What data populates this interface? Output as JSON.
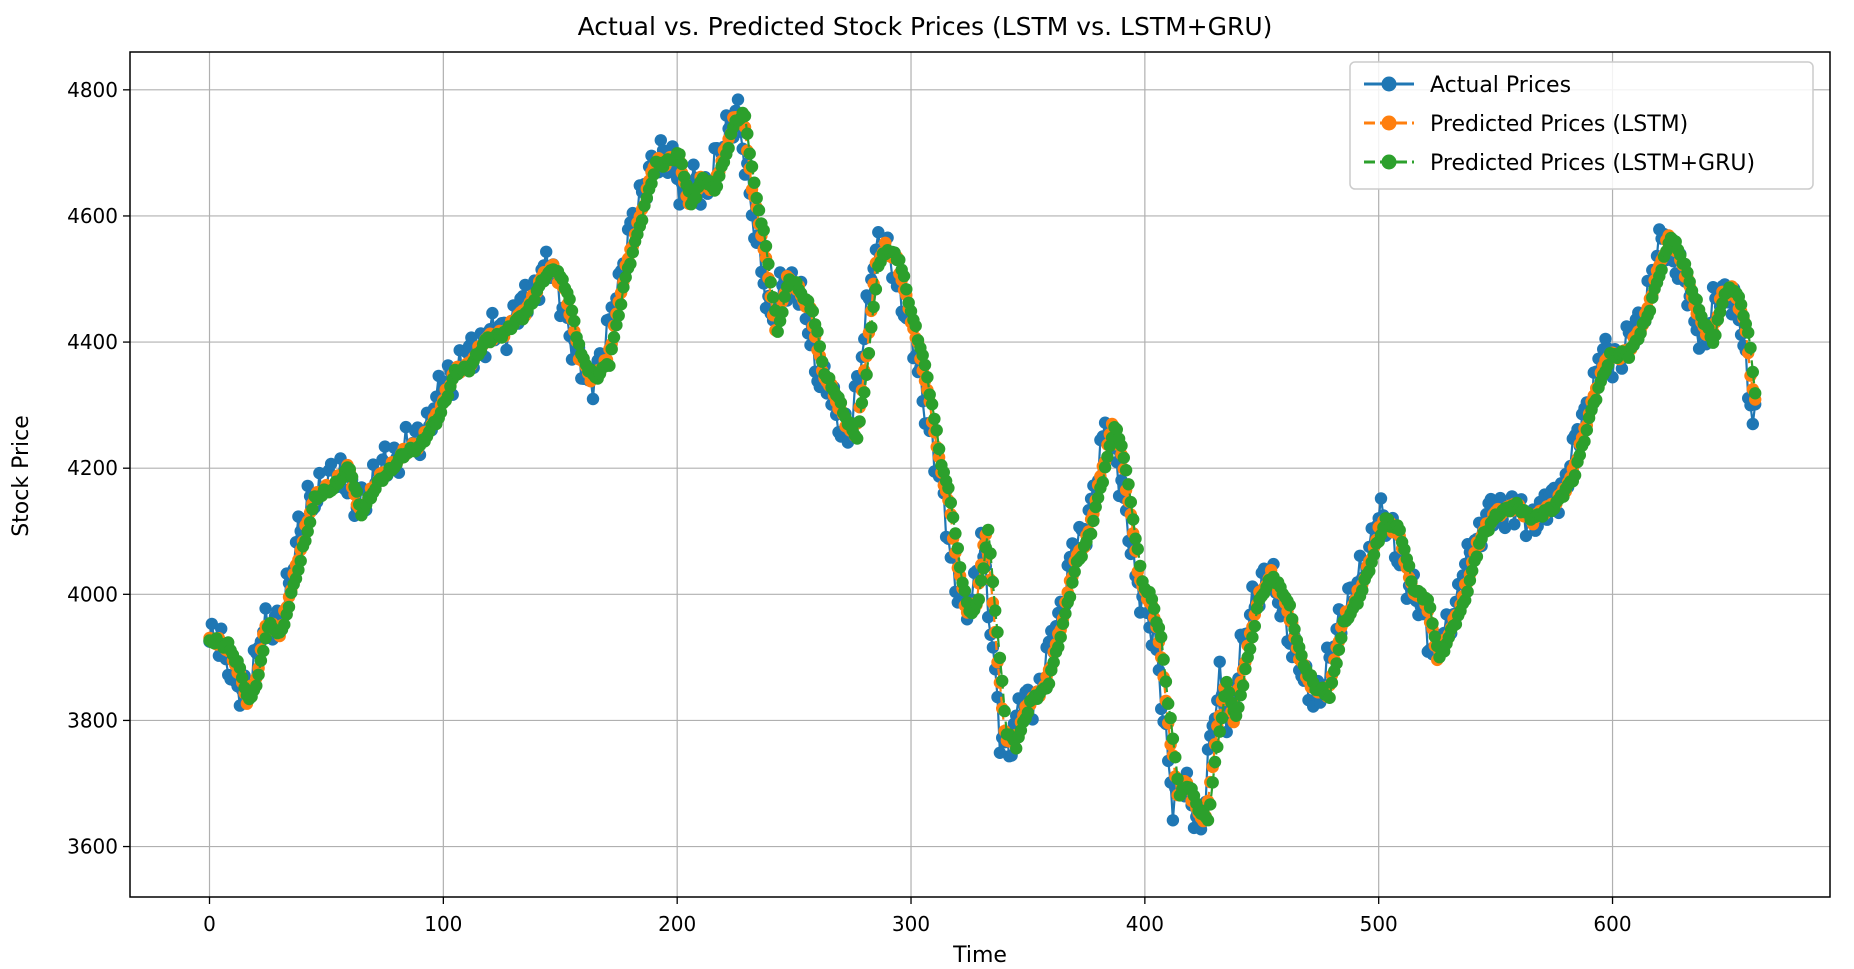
{
  "chart_data": {
    "type": "line",
    "title": "Actual vs. Predicted Stock Prices (LSTM vs. LSTM+GRU)",
    "xlabel": "Time",
    "ylabel": "Stock Price",
    "xlim": [
      -34,
      693
    ],
    "ylim": [
      3520,
      4860
    ],
    "xticks": [
      0,
      100,
      200,
      300,
      400,
      500,
      600
    ],
    "yticks": [
      3600,
      3800,
      4000,
      4200,
      4400,
      4600,
      4800
    ],
    "grid": true,
    "legend_position": "top-right",
    "anchor_x": [
      0,
      5,
      10,
      14,
      18,
      22,
      28,
      35,
      42,
      50,
      57,
      62,
      70,
      80,
      88,
      95,
      102,
      108,
      115,
      125,
      133,
      140,
      145,
      150,
      156,
      162,
      168,
      175,
      182,
      188,
      194,
      198,
      203,
      208,
      213,
      218,
      222,
      226,
      230,
      235,
      240,
      245,
      250,
      255,
      260,
      265,
      270,
      274,
      278,
      283,
      287,
      292,
      297,
      302,
      306,
      310,
      314,
      318,
      322,
      326,
      330,
      334,
      338,
      342,
      348,
      355,
      362,
      368,
      374,
      380,
      384,
      388,
      392,
      396,
      400,
      404,
      408,
      412,
      416,
      420,
      424,
      428,
      432,
      436,
      440,
      446,
      452,
      458,
      464,
      470,
      476,
      482,
      488,
      494,
      500,
      506,
      512,
      518,
      523,
      528,
      533,
      540,
      548,
      556,
      564,
      572,
      580,
      588,
      596,
      604,
      612,
      618,
      622,
      628,
      635,
      640,
      645,
      650,
      655,
      658,
      661
    ],
    "anchor_y": [
      3925,
      3920,
      3880,
      3830,
      3870,
      3950,
      3940,
      4040,
      4150,
      4170,
      4200,
      4130,
      4180,
      4220,
      4240,
      4280,
      4350,
      4360,
      4400,
      4420,
      4450,
      4500,
      4520,
      4480,
      4380,
      4340,
      4370,
      4500,
      4600,
      4680,
      4690,
      4695,
      4620,
      4660,
      4640,
      4700,
      4750,
      4760,
      4650,
      4550,
      4420,
      4500,
      4480,
      4450,
      4350,
      4320,
      4270,
      4250,
      4350,
      4520,
      4550,
      4530,
      4450,
      4380,
      4300,
      4210,
      4150,
      4040,
      3970,
      3990,
      4100,
      3940,
      3780,
      3760,
      3830,
      3850,
      3950,
      4050,
      4100,
      4200,
      4270,
      4220,
      4120,
      4020,
      3990,
      3930,
      3800,
      3680,
      3700,
      3660,
      3640,
      3760,
      3860,
      3800,
      3880,
      3990,
      4030,
      3990,
      3900,
      3850,
      3840,
      3950,
      3990,
      4050,
      4120,
      4100,
      4010,
      3990,
      3900,
      3940,
      3980,
      4080,
      4130,
      4140,
      4120,
      4140,
      4180,
      4290,
      4380,
      4380,
      4440,
      4520,
      4570,
      4520,
      4440,
      4400,
      4480,
      4480,
      4420,
      4320,
      4290
    ],
    "series": [
      {
        "name": "Actual Prices",
        "color": "#1f77b4",
        "linestyle": "solid",
        "marker": "circle",
        "lag": 0,
        "noise_amp": 32,
        "noise_phase": 0
      },
      {
        "name": "Predicted Prices (LSTM)",
        "color": "#ff7f0e",
        "linestyle": "dashed",
        "marker": "circle",
        "lag": 2,
        "noise_amp": 8,
        "noise_phase": 1.7
      },
      {
        "name": "Predicted Prices (LSTM+GRU)",
        "color": "#2ca02c",
        "linestyle": "dashed",
        "marker": "circle",
        "lag": 3,
        "noise_amp": 6,
        "noise_phase": 3.1
      }
    ]
  }
}
